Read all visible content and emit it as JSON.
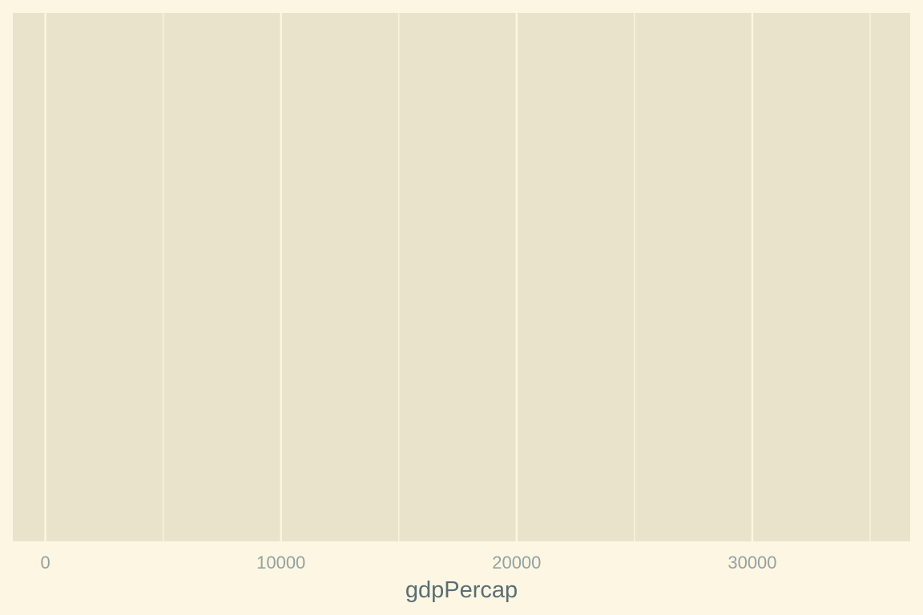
{
  "chart_data": {
    "type": "scatter",
    "title": "",
    "xlabel": "gdpPercap",
    "ylabel": "",
    "xlim": [
      -1380,
      36700
    ],
    "x_ticks": [
      0,
      10000,
      20000,
      30000
    ],
    "x_tick_labels": [
      "0",
      "10000",
      "20000",
      "30000"
    ],
    "x_minor_ticks": [
      5000,
      15000,
      25000,
      35000
    ],
    "y_ticks": [],
    "grid": true,
    "legend": "none",
    "series": [],
    "colors": {
      "background": "#fdf6e3",
      "panel": "#eae3cb",
      "grid": "#fdf6e3",
      "tick_text": "#93a1a1",
      "axis_title": "#586e75"
    }
  }
}
